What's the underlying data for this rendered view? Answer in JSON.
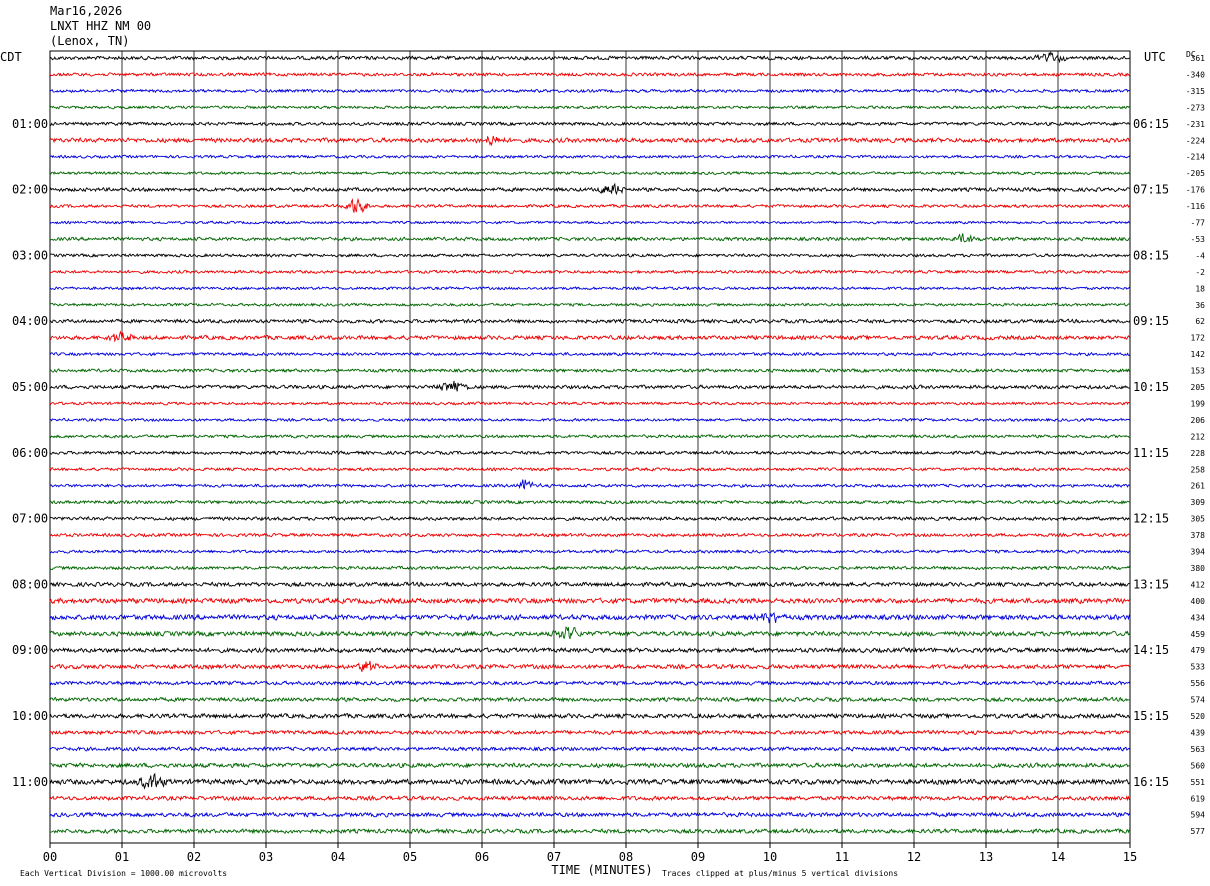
{
  "header": {
    "date": "Mar16,2026",
    "station": "LNXT HHZ NM 00",
    "location": "(Lenox, TN)"
  },
  "colors": {
    "trace": [
      "#000000",
      "#ee0000",
      "#0000dd",
      "#006600"
    ],
    "grid": "#000000"
  },
  "chart_data": {
    "type": "line",
    "title": "",
    "left_timezone": "CDT",
    "right_timezone": "UTC",
    "dc_label": "DC",
    "left_hour_labels": [
      "01:00",
      "02:00",
      "03:00",
      "04:00",
      "05:00",
      "06:00",
      "07:00",
      "08:00",
      "09:00",
      "10:00",
      "11:00"
    ],
    "right_hour_labels": [
      "06:15",
      "07:15",
      "08:15",
      "09:15",
      "10:15",
      "11:15",
      "12:15",
      "13:15",
      "14:15",
      "15:15",
      "16:15"
    ],
    "dc_offsets": [
      "361",
      "-340",
      "-315",
      "-273",
      "-231",
      "-224",
      "-214",
      "-205",
      "-176",
      "-116",
      "-77",
      "-53",
      "-4",
      "-2",
      "18",
      "36",
      "62",
      "172",
      "142",
      "153",
      "205",
      "199",
      "206",
      "212",
      "228",
      "258",
      "261",
      "309",
      "305",
      "378",
      "394",
      "380",
      "412",
      "400",
      "434",
      "459",
      "479",
      "533",
      "556",
      "574",
      "520",
      "439",
      "563",
      "560",
      "551",
      "619",
      "594",
      "577"
    ],
    "xlabel": "TIME (MINUTES)",
    "x_ticks": [
      "00",
      "01",
      "02",
      "03",
      "04",
      "05",
      "06",
      "07",
      "08",
      "09",
      "10",
      "11",
      "12",
      "13",
      "14",
      "15"
    ],
    "xlim": [
      0,
      15
    ],
    "traces_per_hour": 4,
    "trace_count": 48,
    "grid": true,
    "footer_left": "Each Vertical Division = 1000.00 microvolts",
    "footer_right": "Traces clipped at plus/minus 5 vertical divisions",
    "trace_noise": [
      1.6,
      1.4,
      1.3,
      1.2,
      1.4,
      1.9,
      1.2,
      1.2,
      1.6,
      1.3,
      1.1,
      1.5,
      1.3,
      1.3,
      1.2,
      1.2,
      1.6,
      1.8,
      1.3,
      1.4,
      1.6,
      1.2,
      1.2,
      1.3,
      1.4,
      1.3,
      1.3,
      1.4,
      1.5,
      1.4,
      1.3,
      1.4,
      1.8,
      2.2,
      2.2,
      2.0,
      1.9,
      1.9,
      1.6,
      1.7,
      1.9,
      1.7,
      1.6,
      1.9,
      2.2,
      1.8,
      1.8,
      1.8
    ],
    "events": [
      {
        "trace": 0,
        "minute": 13.9,
        "amp": 3.0
      },
      {
        "trace": 5,
        "minute": 6.1,
        "amp": 2.8
      },
      {
        "trace": 8,
        "minute": 7.8,
        "amp": 3.2
      },
      {
        "trace": 9,
        "minute": 4.25,
        "amp": 4.0
      },
      {
        "trace": 11,
        "minute": 12.7,
        "amp": 2.8
      },
      {
        "trace": 17,
        "minute": 1.0,
        "amp": 2.6
      },
      {
        "trace": 20,
        "minute": 5.6,
        "amp": 3.6
      },
      {
        "trace": 26,
        "minute": 6.6,
        "amp": 2.8
      },
      {
        "trace": 34,
        "minute": 10.0,
        "amp": 3.0
      },
      {
        "trace": 35,
        "minute": 7.2,
        "amp": 3.6
      },
      {
        "trace": 37,
        "minute": 4.4,
        "amp": 3.0
      },
      {
        "trace": 44,
        "minute": 1.4,
        "amp": 4.0
      }
    ]
  }
}
